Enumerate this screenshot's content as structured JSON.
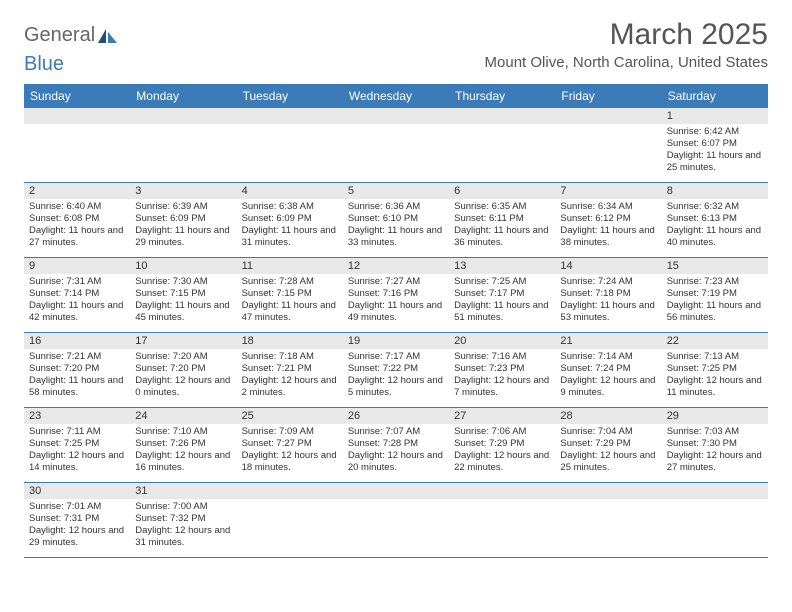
{
  "logo": {
    "text1": "General",
    "text2": "Blue"
  },
  "title": "March 2025",
  "location": "Mount Olive, North Carolina, United States",
  "day_headers": [
    "Sunday",
    "Monday",
    "Tuesday",
    "Wednesday",
    "Thursday",
    "Friday",
    "Saturday"
  ],
  "colors": {
    "header_bg": "#3a7bb8",
    "header_fg": "#ffffff",
    "daynum_bg": "#e8e8e8",
    "border": "#3a7bb8",
    "text": "#333333",
    "title": "#555555"
  },
  "weeks": [
    [
      null,
      null,
      null,
      null,
      null,
      null,
      {
        "n": "1",
        "sr": "6:42 AM",
        "ss": "6:07 PM",
        "dl": "11 hours and 25 minutes."
      }
    ],
    [
      {
        "n": "2",
        "sr": "6:40 AM",
        "ss": "6:08 PM",
        "dl": "11 hours and 27 minutes."
      },
      {
        "n": "3",
        "sr": "6:39 AM",
        "ss": "6:09 PM",
        "dl": "11 hours and 29 minutes."
      },
      {
        "n": "4",
        "sr": "6:38 AM",
        "ss": "6:09 PM",
        "dl": "11 hours and 31 minutes."
      },
      {
        "n": "5",
        "sr": "6:36 AM",
        "ss": "6:10 PM",
        "dl": "11 hours and 33 minutes."
      },
      {
        "n": "6",
        "sr": "6:35 AM",
        "ss": "6:11 PM",
        "dl": "11 hours and 36 minutes."
      },
      {
        "n": "7",
        "sr": "6:34 AM",
        "ss": "6:12 PM",
        "dl": "11 hours and 38 minutes."
      },
      {
        "n": "8",
        "sr": "6:32 AM",
        "ss": "6:13 PM",
        "dl": "11 hours and 40 minutes."
      }
    ],
    [
      {
        "n": "9",
        "sr": "7:31 AM",
        "ss": "7:14 PM",
        "dl": "11 hours and 42 minutes."
      },
      {
        "n": "10",
        "sr": "7:30 AM",
        "ss": "7:15 PM",
        "dl": "11 hours and 45 minutes."
      },
      {
        "n": "11",
        "sr": "7:28 AM",
        "ss": "7:15 PM",
        "dl": "11 hours and 47 minutes."
      },
      {
        "n": "12",
        "sr": "7:27 AM",
        "ss": "7:16 PM",
        "dl": "11 hours and 49 minutes."
      },
      {
        "n": "13",
        "sr": "7:25 AM",
        "ss": "7:17 PM",
        "dl": "11 hours and 51 minutes."
      },
      {
        "n": "14",
        "sr": "7:24 AM",
        "ss": "7:18 PM",
        "dl": "11 hours and 53 minutes."
      },
      {
        "n": "15",
        "sr": "7:23 AM",
        "ss": "7:19 PM",
        "dl": "11 hours and 56 minutes."
      }
    ],
    [
      {
        "n": "16",
        "sr": "7:21 AM",
        "ss": "7:20 PM",
        "dl": "11 hours and 58 minutes."
      },
      {
        "n": "17",
        "sr": "7:20 AM",
        "ss": "7:20 PM",
        "dl": "12 hours and 0 minutes."
      },
      {
        "n": "18",
        "sr": "7:18 AM",
        "ss": "7:21 PM",
        "dl": "12 hours and 2 minutes."
      },
      {
        "n": "19",
        "sr": "7:17 AM",
        "ss": "7:22 PM",
        "dl": "12 hours and 5 minutes."
      },
      {
        "n": "20",
        "sr": "7:16 AM",
        "ss": "7:23 PM",
        "dl": "12 hours and 7 minutes."
      },
      {
        "n": "21",
        "sr": "7:14 AM",
        "ss": "7:24 PM",
        "dl": "12 hours and 9 minutes."
      },
      {
        "n": "22",
        "sr": "7:13 AM",
        "ss": "7:25 PM",
        "dl": "12 hours and 11 minutes."
      }
    ],
    [
      {
        "n": "23",
        "sr": "7:11 AM",
        "ss": "7:25 PM",
        "dl": "12 hours and 14 minutes."
      },
      {
        "n": "24",
        "sr": "7:10 AM",
        "ss": "7:26 PM",
        "dl": "12 hours and 16 minutes."
      },
      {
        "n": "25",
        "sr": "7:09 AM",
        "ss": "7:27 PM",
        "dl": "12 hours and 18 minutes."
      },
      {
        "n": "26",
        "sr": "7:07 AM",
        "ss": "7:28 PM",
        "dl": "12 hours and 20 minutes."
      },
      {
        "n": "27",
        "sr": "7:06 AM",
        "ss": "7:29 PM",
        "dl": "12 hours and 22 minutes."
      },
      {
        "n": "28",
        "sr": "7:04 AM",
        "ss": "7:29 PM",
        "dl": "12 hours and 25 minutes."
      },
      {
        "n": "29",
        "sr": "7:03 AM",
        "ss": "7:30 PM",
        "dl": "12 hours and 27 minutes."
      }
    ],
    [
      {
        "n": "30",
        "sr": "7:01 AM",
        "ss": "7:31 PM",
        "dl": "12 hours and 29 minutes."
      },
      {
        "n": "31",
        "sr": "7:00 AM",
        "ss": "7:32 PM",
        "dl": "12 hours and 31 minutes."
      },
      null,
      null,
      null,
      null,
      null
    ]
  ],
  "labels": {
    "sunrise": "Sunrise:",
    "sunset": "Sunset:",
    "daylight": "Daylight:"
  }
}
